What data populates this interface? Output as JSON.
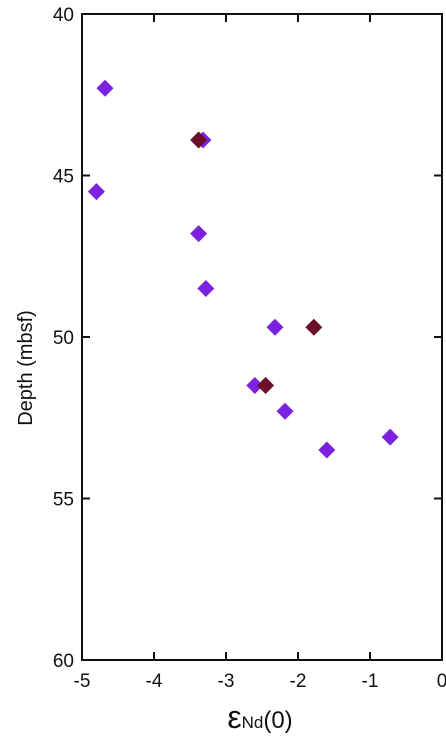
{
  "chart_data": {
    "type": "scatter",
    "xlabel_main": "ε",
    "xlabel_sub": "Nd",
    "xlabel_suffix": "(0)",
    "ylabel": "Depth (mbsf)",
    "xlim": [
      -5,
      0
    ],
    "ylim": [
      40,
      60
    ],
    "y_inverted": true,
    "grid": false,
    "x_ticks": [
      -5,
      -4,
      -3,
      -2,
      -1,
      0
    ],
    "y_ticks": [
      40,
      45,
      50,
      55,
      60
    ],
    "x_tick_labels": [
      "-5",
      "-4",
      "-3",
      "-2",
      "-1",
      "0"
    ],
    "y_tick_labels": [
      "40",
      "45",
      "50",
      "55",
      "60"
    ],
    "series": [
      {
        "color": "#7b22e0",
        "marker": "diamond",
        "points": [
          {
            "x": -4.68,
            "y": 42.3
          },
          {
            "x": -3.32,
            "y": 43.9
          },
          {
            "x": -4.8,
            "y": 45.5
          },
          {
            "x": -3.38,
            "y": 46.8
          },
          {
            "x": -3.28,
            "y": 48.5
          },
          {
            "x": -2.32,
            "y": 49.7
          },
          {
            "x": -2.6,
            "y": 51.5
          },
          {
            "x": -2.18,
            "y": 52.3
          },
          {
            "x": -1.6,
            "y": 53.5
          },
          {
            "x": -0.72,
            "y": 53.1
          }
        ]
      },
      {
        "color": "#6b0f2a",
        "marker": "diamond",
        "points": [
          {
            "x": -3.38,
            "y": 43.9
          },
          {
            "x": -1.78,
            "y": 49.7
          },
          {
            "x": -2.45,
            "y": 51.5
          }
        ]
      }
    ]
  }
}
